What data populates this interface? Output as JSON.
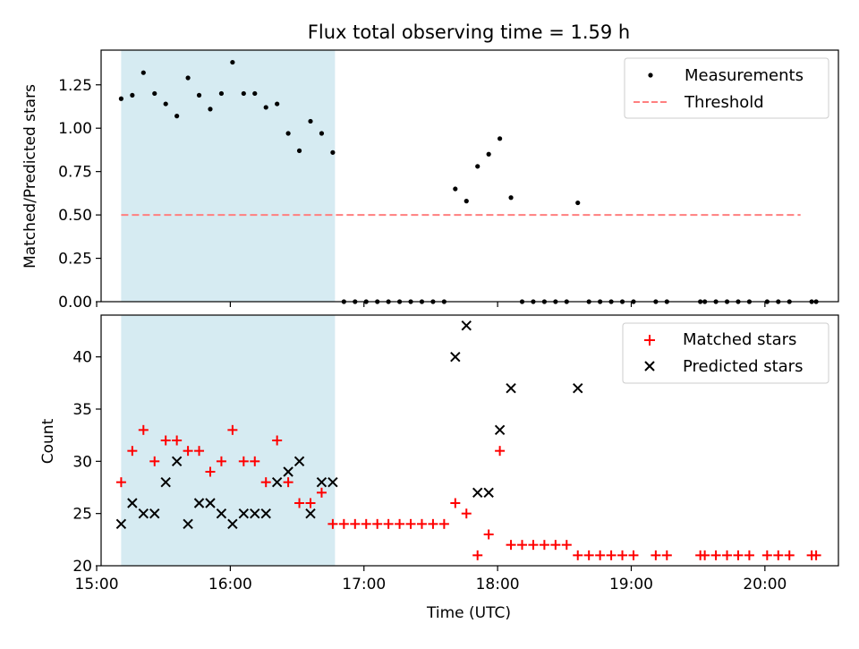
{
  "chart_data": [
    {
      "type": "scatter",
      "title": "Flux total observing time = 1.59 h",
      "xlabel": "",
      "ylabel": "Matched/Predicted stars",
      "xlim": [
        "15:02",
        "20:33"
      ],
      "ylim": [
        0,
        1.45
      ],
      "x_ticks": [
        "15:00",
        "16:00",
        "17:00",
        "18:00",
        "19:00",
        "20:00"
      ],
      "x_tick_labels_visible": false,
      "y_ticks": [
        "0.00",
        "0.25",
        "0.50",
        "0.75",
        "1.00",
        "1.25"
      ],
      "grid": false,
      "legend_position": "upper right",
      "shaded_region": {
        "x_start": "15:11",
        "x_end": "16:47",
        "color": "#add8e6"
      },
      "threshold": {
        "name": "Threshold",
        "value": 0.5,
        "x_start": "15:11",
        "x_end": "20:16",
        "color": "#ff7f7f",
        "style": "dashed"
      },
      "series": [
        {
          "name": "Measurements",
          "color": "#000000",
          "marker": "point",
          "points": [
            [
              "15:11",
              1.17
            ],
            [
              "15:16",
              1.19
            ],
            [
              "15:21",
              1.32
            ],
            [
              "15:26",
              1.2
            ],
            [
              "15:31",
              1.14
            ],
            [
              "15:36",
              1.07
            ],
            [
              "15:41",
              1.29
            ],
            [
              "15:46",
              1.19
            ],
            [
              "15:51",
              1.11
            ],
            [
              "15:56",
              1.2
            ],
            [
              "16:01",
              1.38
            ],
            [
              "16:06",
              1.2
            ],
            [
              "16:11",
              1.2
            ],
            [
              "16:16",
              1.12
            ],
            [
              "16:21",
              1.14
            ],
            [
              "16:26",
              0.97
            ],
            [
              "16:31",
              0.87
            ],
            [
              "16:36",
              1.04
            ],
            [
              "16:41",
              0.97
            ],
            [
              "16:46",
              0.86
            ],
            [
              "16:51",
              0.0
            ],
            [
              "16:56",
              0.0
            ],
            [
              "17:01",
              0.0
            ],
            [
              "17:06",
              0.0
            ],
            [
              "17:11",
              0.0
            ],
            [
              "17:16",
              0.0
            ],
            [
              "17:21",
              0.0
            ],
            [
              "17:26",
              0.0
            ],
            [
              "17:31",
              0.0
            ],
            [
              "17:36",
              0.0
            ],
            [
              "17:41",
              0.65
            ],
            [
              "17:46",
              0.58
            ],
            [
              "17:51",
              0.78
            ],
            [
              "17:56",
              0.85
            ],
            [
              "18:01",
              0.94
            ],
            [
              "18:06",
              0.6
            ],
            [
              "18:11",
              0.0
            ],
            [
              "18:16",
              0.0
            ],
            [
              "18:21",
              0.0
            ],
            [
              "18:26",
              0.0
            ],
            [
              "18:31",
              0.0
            ],
            [
              "18:36",
              0.57
            ],
            [
              "18:41",
              0.0
            ],
            [
              "18:46",
              0.0
            ],
            [
              "18:51",
              0.0
            ],
            [
              "18:56",
              0.0
            ],
            [
              "19:01",
              0.0
            ],
            [
              "19:11",
              0.0
            ],
            [
              "19:16",
              0.0
            ],
            [
              "19:31",
              0.0
            ],
            [
              "19:33",
              0.0
            ],
            [
              "19:38",
              0.0
            ],
            [
              "19:43",
              0.0
            ],
            [
              "19:48",
              0.0
            ],
            [
              "19:53",
              0.0
            ],
            [
              "20:01",
              0.0
            ],
            [
              "20:06",
              0.0
            ],
            [
              "20:11",
              0.0
            ],
            [
              "20:21",
              0.0
            ],
            [
              "20:23",
              0.0
            ]
          ]
        }
      ]
    },
    {
      "type": "scatter",
      "title": "",
      "xlabel": "Time (UTC)",
      "ylabel": "Count",
      "xlim": [
        "15:02",
        "20:33"
      ],
      "ylim": [
        20,
        44
      ],
      "x_ticks": [
        "15:00",
        "16:00",
        "17:00",
        "18:00",
        "19:00",
        "20:00"
      ],
      "y_ticks": [
        "20",
        "25",
        "30",
        "35",
        "40"
      ],
      "grid": false,
      "legend_position": "upper right",
      "shaded_region": {
        "x_start": "15:11",
        "x_end": "16:47",
        "color": "#add8e6"
      },
      "series": [
        {
          "name": "Matched stars",
          "color": "#ff0000",
          "marker": "plus",
          "points": [
            [
              "15:11",
              28
            ],
            [
              "15:16",
              31
            ],
            [
              "15:21",
              33
            ],
            [
              "15:26",
              30
            ],
            [
              "15:31",
              32
            ],
            [
              "15:36",
              32
            ],
            [
              "15:41",
              31
            ],
            [
              "15:46",
              31
            ],
            [
              "15:51",
              29
            ],
            [
              "15:56",
              30
            ],
            [
              "16:01",
              33
            ],
            [
              "16:06",
              30
            ],
            [
              "16:11",
              30
            ],
            [
              "16:16",
              28
            ],
            [
              "16:21",
              32
            ],
            [
              "16:26",
              28
            ],
            [
              "16:31",
              26
            ],
            [
              "16:36",
              26
            ],
            [
              "16:41",
              27
            ],
            [
              "16:46",
              24
            ],
            [
              "16:51",
              24
            ],
            [
              "16:56",
              24
            ],
            [
              "17:01",
              24
            ],
            [
              "17:06",
              24
            ],
            [
              "17:11",
              24
            ],
            [
              "17:16",
              24
            ],
            [
              "17:21",
              24
            ],
            [
              "17:26",
              24
            ],
            [
              "17:31",
              24
            ],
            [
              "17:36",
              24
            ],
            [
              "17:41",
              26
            ],
            [
              "17:46",
              25
            ],
            [
              "17:51",
              21
            ],
            [
              "17:56",
              23
            ],
            [
              "18:01",
              31
            ],
            [
              "18:06",
              22
            ],
            [
              "18:11",
              22
            ],
            [
              "18:16",
              22
            ],
            [
              "18:21",
              22
            ],
            [
              "18:26",
              22
            ],
            [
              "18:31",
              22
            ],
            [
              "18:36",
              21
            ],
            [
              "18:41",
              21
            ],
            [
              "18:46",
              21
            ],
            [
              "18:51",
              21
            ],
            [
              "18:56",
              21
            ],
            [
              "19:01",
              21
            ],
            [
              "19:11",
              21
            ],
            [
              "19:16",
              21
            ],
            [
              "19:31",
              21
            ],
            [
              "19:33",
              21
            ],
            [
              "19:38",
              21
            ],
            [
              "19:43",
              21
            ],
            [
              "19:48",
              21
            ],
            [
              "19:53",
              21
            ],
            [
              "20:01",
              21
            ],
            [
              "20:06",
              21
            ],
            [
              "20:11",
              21
            ],
            [
              "20:21",
              21
            ],
            [
              "20:23",
              21
            ]
          ]
        },
        {
          "name": "Predicted stars",
          "color": "#000000",
          "marker": "x",
          "points": [
            [
              "15:11",
              24
            ],
            [
              "15:16",
              26
            ],
            [
              "15:21",
              25
            ],
            [
              "15:26",
              25
            ],
            [
              "15:31",
              28
            ],
            [
              "15:36",
              30
            ],
            [
              "15:41",
              24
            ],
            [
              "15:46",
              26
            ],
            [
              "15:51",
              26
            ],
            [
              "15:56",
              25
            ],
            [
              "16:01",
              24
            ],
            [
              "16:06",
              25
            ],
            [
              "16:11",
              25
            ],
            [
              "16:16",
              25
            ],
            [
              "16:21",
              28
            ],
            [
              "16:26",
              29
            ],
            [
              "16:31",
              30
            ],
            [
              "16:36",
              25
            ],
            [
              "16:41",
              28
            ],
            [
              "16:46",
              28
            ],
            [
              "17:41",
              40
            ],
            [
              "17:46",
              43
            ],
            [
              "17:56",
              27
            ],
            [
              "17:51",
              27
            ],
            [
              "18:01",
              33
            ],
            [
              "18:06",
              37
            ],
            [
              "18:36",
              37
            ]
          ]
        }
      ]
    }
  ]
}
